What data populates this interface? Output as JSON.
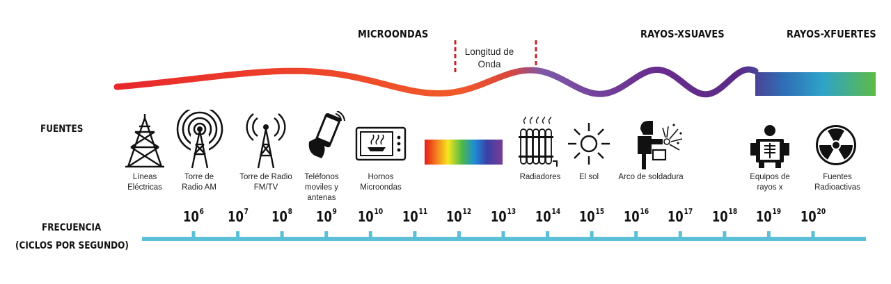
{
  "bands": {
    "microwaves": "MICROONDAS",
    "soft_xray": "RAYOS-XSUAVES",
    "hard_xray": "RAYOS-XFUERTES"
  },
  "wavelength_label": "Longitud de Onda",
  "sources_label": "FUENTES",
  "sources": [
    {
      "icon": "power-tower-icon",
      "label": "Líneas Eléctricas"
    },
    {
      "icon": "am-radio-tower-icon",
      "label": "Torre de Radio AM"
    },
    {
      "icon": "fm-tv-tower-icon",
      "label": "Torre de Radio FM/TV"
    },
    {
      "icon": "mobile-phone-icon",
      "label": "Teléfonos moviles y antenas"
    },
    {
      "icon": "microwave-oven-icon",
      "label": "Hornos Microondas"
    },
    {
      "icon": "visible-spectrum-bar",
      "label": ""
    },
    {
      "icon": "radiator-icon",
      "label": "Radiadores"
    },
    {
      "icon": "sun-icon",
      "label": "El sol"
    },
    {
      "icon": "welder-icon",
      "label": "Arco de soldadura"
    },
    {
      "icon": "xray-machine-icon",
      "label": "Equipos de rayos x"
    },
    {
      "icon": "radioactive-icon",
      "label": "Fuentes Radioactivas"
    }
  ],
  "frequency": {
    "label_line1": "FRECUENCIA",
    "label_line2": "(CICLOS POR SEGUNDO)",
    "base": "10",
    "exponents": [
      "6",
      "7",
      "8",
      "9",
      "10",
      "11",
      "12",
      "13",
      "14",
      "15",
      "16",
      "17",
      "18",
      "19",
      "20"
    ]
  },
  "colors": {
    "wave_red": "#e8282b",
    "wave_orange": "#f15a2a",
    "wave_purple": "#6a2d8f",
    "wave_blue": "#2f6fb6",
    "wave_green": "#5dbb46",
    "axis": "#5bbfd8",
    "marker": "#c8202a"
  }
}
